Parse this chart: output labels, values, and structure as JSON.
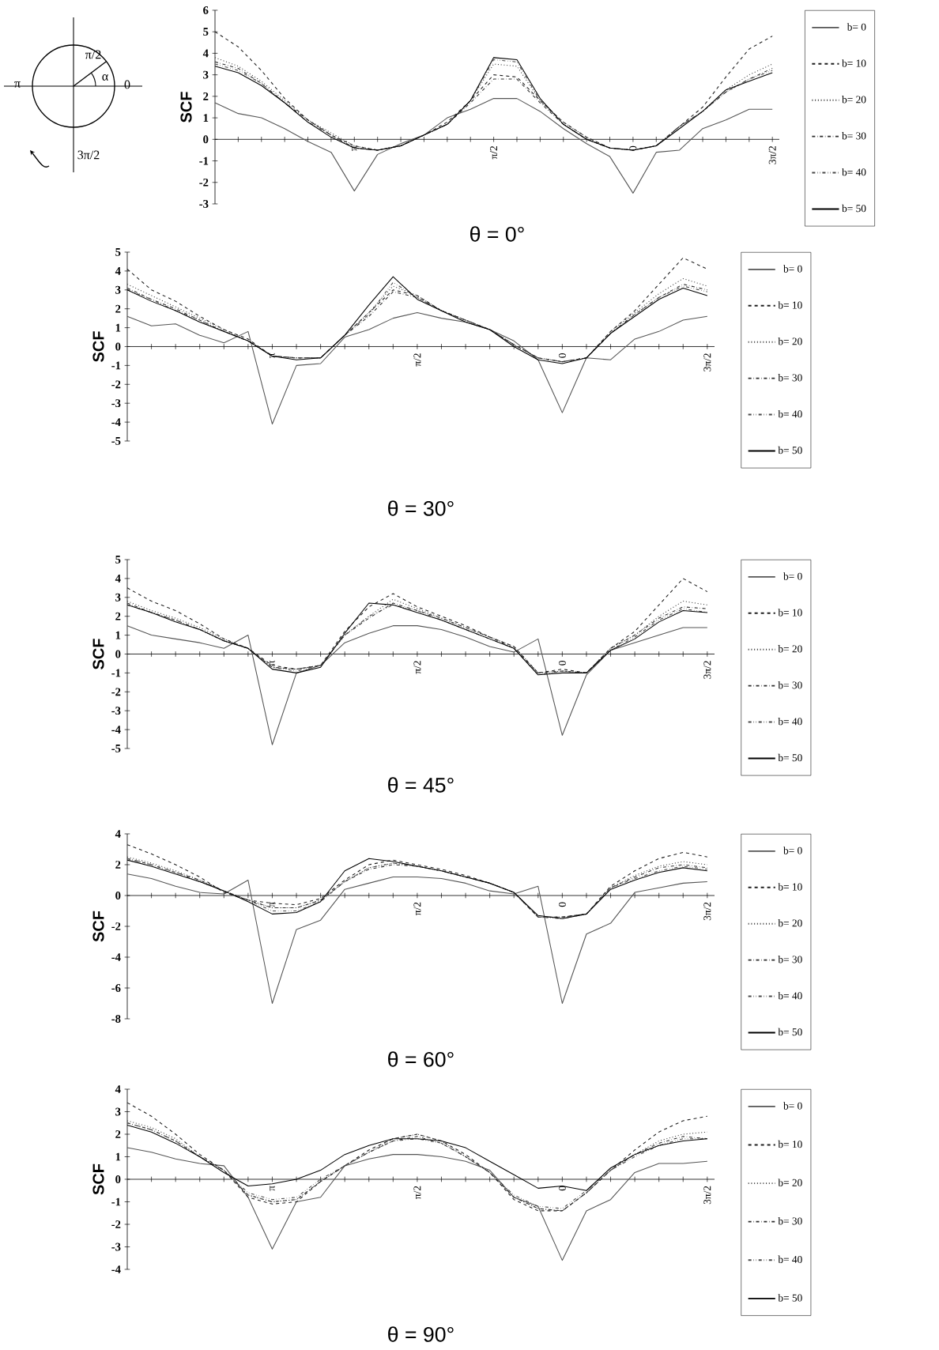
{
  "chart_data": [
    {
      "type": "line",
      "title": "θ = 0°",
      "ylabel": "SCF",
      "annotations": [
        "π/2",
        "π",
        "0",
        "3π/2",
        "α"
      ],
      "legend": "right",
      "ylim": [
        -3,
        6
      ],
      "yticks": [
        -3,
        -2,
        -1,
        0,
        1,
        2,
        3,
        4,
        5,
        6
      ],
      "categories": [
        null,
        null,
        null,
        null,
        null,
        null,
        "π",
        null,
        null,
        null,
        null,
        null,
        "π/2",
        null,
        null,
        null,
        null,
        null,
        "0",
        null,
        null,
        null,
        null,
        null,
        "3π/2"
      ],
      "series": [
        {
          "name": "b= 0",
          "color": "#555555",
          "line_style": "solid",
          "values": [
            1.7,
            1.2,
            1.0,
            0.5,
            -0.1,
            -0.6,
            -2.4,
            -0.7,
            -0.2,
            0.2,
            1.0,
            1.4,
            1.9,
            1.9,
            1.3,
            0.5,
            -0.2,
            -0.8,
            -2.5,
            -0.6,
            -0.5,
            0.5,
            0.9,
            1.4,
            1.4
          ]
        },
        {
          "name": "b= 10",
          "color": "#1f1f1f",
          "line_style": "dashed",
          "values": [
            5.0,
            4.3,
            3.2,
            1.9,
            0.9,
            0.2,
            -0.3,
            -0.5,
            -0.3,
            0.2,
            0.8,
            1.8,
            3.0,
            2.9,
            1.8,
            0.8,
            0.1,
            -0.4,
            -0.5,
            -0.3,
            0.6,
            1.5,
            2.9,
            4.2,
            4.8
          ]
        },
        {
          "name": "b= 20",
          "color": "#3d3d3d",
          "line_style": "dotted",
          "values": [
            3.8,
            3.4,
            2.7,
            1.8,
            0.9,
            0.3,
            -0.3,
            -0.5,
            -0.3,
            0.2,
            0.7,
            1.8,
            3.5,
            3.4,
            1.8,
            0.8,
            0.1,
            -0.4,
            -0.5,
            -0.3,
            0.6,
            1.3,
            2.3,
            3.0,
            3.5
          ]
        },
        {
          "name": "b= 30",
          "color": "#2e2e2e",
          "line_style": "dashdot",
          "values": [
            3.6,
            3.3,
            2.6,
            1.7,
            0.9,
            0.2,
            -0.4,
            -0.5,
            -0.3,
            0.2,
            0.7,
            1.7,
            2.8,
            2.8,
            1.7,
            0.7,
            0.0,
            -0.4,
            -0.5,
            -0.3,
            0.6,
            1.3,
            2.2,
            2.8,
            3.3
          ]
        },
        {
          "name": "b= 40",
          "color": "#4a4a4a",
          "line_style": "dashdotdot",
          "values": [
            3.5,
            3.2,
            2.6,
            1.7,
            0.8,
            0.2,
            -0.4,
            -0.5,
            -0.3,
            0.2,
            0.7,
            1.8,
            3.7,
            3.6,
            1.8,
            0.7,
            0.0,
            -0.4,
            -0.5,
            -0.3,
            0.6,
            1.3,
            2.2,
            2.8,
            3.2
          ]
        },
        {
          "name": "b= 50",
          "color": "#000000",
          "line_style": "solid",
          "values": [
            3.4,
            3.1,
            2.5,
            1.7,
            0.8,
            0.1,
            -0.4,
            -0.5,
            -0.3,
            0.2,
            0.7,
            1.8,
            3.8,
            3.7,
            1.9,
            0.7,
            0.0,
            -0.4,
            -0.5,
            -0.3,
            0.5,
            1.3,
            2.3,
            2.7,
            3.1
          ]
        }
      ]
    },
    {
      "type": "line",
      "title": "θ = 30°",
      "ylabel": "SCF",
      "legend": "right",
      "ylim": [
        -5,
        5
      ],
      "yticks": [
        -5,
        -4,
        -3,
        -2,
        -1,
        0,
        1,
        2,
        3,
        4,
        5
      ],
      "categories": [
        null,
        null,
        null,
        null,
        null,
        null,
        "π",
        null,
        null,
        null,
        null,
        null,
        "π/2",
        null,
        null,
        null,
        null,
        null,
        "0",
        null,
        null,
        null,
        null,
        null,
        "3π/2"
      ],
      "series": [
        {
          "name": "b= 0",
          "color": "#555555",
          "line_style": "solid",
          "values": [
            1.6,
            1.1,
            1.2,
            0.6,
            0.2,
            0.8,
            -4.1,
            -1.0,
            -0.9,
            0.5,
            0.9,
            1.5,
            1.8,
            1.5,
            1.3,
            0.9,
            0.3,
            -0.7,
            -3.5,
            -0.6,
            -0.7,
            0.4,
            0.8,
            1.4,
            1.6
          ]
        },
        {
          "name": "b= 10",
          "color": "#1f1f1f",
          "line_style": "dashed",
          "values": [
            4.1,
            3.0,
            2.4,
            1.6,
            0.9,
            0.4,
            -0.5,
            -0.6,
            -0.6,
            0.6,
            1.8,
            3.0,
            2.7,
            1.9,
            1.4,
            0.9,
            0.1,
            -0.6,
            -0.8,
            -0.6,
            0.8,
            1.9,
            3.3,
            4.7,
            4.1
          ]
        },
        {
          "name": "b= 20",
          "color": "#3d3d3d",
          "line_style": "dotted",
          "values": [
            3.3,
            2.7,
            2.1,
            1.5,
            0.9,
            0.3,
            -0.5,
            -0.6,
            -0.6,
            0.6,
            1.8,
            3.2,
            2.7,
            1.9,
            1.4,
            0.9,
            0.1,
            -0.6,
            -0.8,
            -0.6,
            0.8,
            1.8,
            2.8,
            3.6,
            3.2
          ]
        },
        {
          "name": "b= 30",
          "color": "#2e2e2e",
          "line_style": "dashdot",
          "values": [
            3.1,
            2.5,
            2.0,
            1.4,
            0.8,
            0.3,
            -0.5,
            -0.6,
            -0.6,
            0.6,
            1.6,
            2.9,
            2.6,
            1.9,
            1.4,
            0.9,
            0.1,
            -0.6,
            -0.8,
            -0.6,
            0.7,
            1.7,
            2.6,
            3.3,
            3.0
          ]
        },
        {
          "name": "b= 40",
          "color": "#4a4a4a",
          "line_style": "dashdotdot",
          "values": [
            3.0,
            2.5,
            1.9,
            1.4,
            0.8,
            0.3,
            -0.5,
            -0.6,
            -0.6,
            0.6,
            1.7,
            3.4,
            2.6,
            1.9,
            1.4,
            0.9,
            0.1,
            -0.6,
            -0.8,
            -0.6,
            0.7,
            1.7,
            2.6,
            3.2,
            2.9
          ]
        },
        {
          "name": "b= 50",
          "color": "#000000",
          "line_style": "solid",
          "values": [
            3.0,
            2.4,
            1.9,
            1.3,
            0.8,
            0.3,
            -0.5,
            -0.7,
            -0.6,
            0.6,
            2.2,
            3.7,
            2.5,
            1.9,
            1.3,
            0.9,
            0.0,
            -0.7,
            -0.9,
            -0.6,
            0.7,
            1.6,
            2.5,
            3.1,
            2.7
          ]
        }
      ]
    },
    {
      "type": "line",
      "title": "θ = 45°",
      "ylabel": "SCF",
      "legend": "right",
      "ylim": [
        -5,
        5
      ],
      "yticks": [
        -5,
        -4,
        -3,
        -2,
        -1,
        0,
        1,
        2,
        3,
        4,
        5
      ],
      "categories": [
        null,
        null,
        null,
        null,
        null,
        null,
        "π",
        null,
        null,
        null,
        null,
        null,
        "π/2",
        null,
        null,
        null,
        null,
        null,
        "0",
        null,
        null,
        null,
        null,
        null,
        "3π/2"
      ],
      "series": [
        {
          "name": "b= 0",
          "color": "#555555",
          "line_style": "solid",
          "values": [
            1.5,
            1.0,
            0.8,
            0.6,
            0.3,
            1.0,
            -4.8,
            -1.0,
            -0.6,
            0.6,
            1.1,
            1.5,
            1.5,
            1.3,
            0.9,
            0.4,
            0.1,
            0.8,
            -4.3,
            -1.1,
            0.2,
            0.6,
            1.0,
            1.4,
            1.4
          ]
        },
        {
          "name": "b= 10",
          "color": "#1f1f1f",
          "line_style": "dashed",
          "values": [
            3.5,
            2.8,
            2.3,
            1.6,
            0.8,
            0.3,
            -0.6,
            -0.8,
            -0.6,
            1.2,
            2.5,
            3.2,
            2.5,
            2.0,
            1.5,
            0.9,
            0.4,
            -1.0,
            -0.8,
            -1.0,
            0.3,
            1.2,
            2.6,
            4.0,
            3.3
          ]
        },
        {
          "name": "b= 20",
          "color": "#3d3d3d",
          "line_style": "dotted",
          "values": [
            2.8,
            2.3,
            1.9,
            1.4,
            0.8,
            0.3,
            -0.7,
            -0.8,
            -0.6,
            1.0,
            2.0,
            2.9,
            2.4,
            1.9,
            1.4,
            0.9,
            0.4,
            -1.0,
            -0.9,
            -1.0,
            0.3,
            1.0,
            2.0,
            2.8,
            2.6
          ]
        },
        {
          "name": "b= 30",
          "color": "#2e2e2e",
          "line_style": "dashdot",
          "values": [
            2.7,
            2.2,
            1.8,
            1.3,
            0.7,
            0.3,
            -0.7,
            -0.8,
            -0.6,
            1.0,
            1.9,
            2.7,
            2.3,
            1.9,
            1.4,
            0.9,
            0.3,
            -1.0,
            -0.9,
            -1.0,
            0.3,
            1.0,
            1.9,
            2.5,
            2.4
          ]
        },
        {
          "name": "b= 40",
          "color": "#4a4a4a",
          "line_style": "dashdotdot",
          "values": [
            2.6,
            2.2,
            1.8,
            1.3,
            0.7,
            0.3,
            -0.7,
            -0.9,
            -0.6,
            1.0,
            2.0,
            2.6,
            2.3,
            1.8,
            1.3,
            0.8,
            0.3,
            -1.1,
            -0.9,
            -1.0,
            0.2,
            0.9,
            1.8,
            2.4,
            2.2
          ]
        },
        {
          "name": "b= 50",
          "color": "#000000",
          "line_style": "solid",
          "values": [
            2.6,
            2.2,
            1.7,
            1.3,
            0.7,
            0.3,
            -0.8,
            -1.0,
            -0.7,
            1.1,
            2.7,
            2.6,
            2.2,
            1.8,
            1.3,
            0.8,
            0.3,
            -1.1,
            -1.0,
            -1.0,
            0.2,
            0.8,
            1.7,
            2.3,
            2.2
          ]
        }
      ]
    },
    {
      "type": "line",
      "title": "θ = 60°",
      "ylabel": "SCF",
      "legend": "right",
      "ylim": [
        -8,
        4
      ],
      "yticks": [
        -8,
        -6,
        -4,
        -2,
        0,
        2,
        4
      ],
      "categories": [
        null,
        null,
        null,
        null,
        null,
        null,
        "π",
        null,
        null,
        null,
        null,
        null,
        "π/2",
        null,
        null,
        null,
        null,
        null,
        "0",
        null,
        null,
        null,
        null,
        null,
        "3π/2"
      ],
      "series": [
        {
          "name": "b= 0",
          "color": "#555555",
          "line_style": "solid",
          "values": [
            1.4,
            1.1,
            0.6,
            0.2,
            0.1,
            1.0,
            -7.0,
            -2.2,
            -1.6,
            0.4,
            0.8,
            1.2,
            1.2,
            1.1,
            0.8,
            0.3,
            0.1,
            0.6,
            -7.0,
            -2.5,
            -1.8,
            0.2,
            0.5,
            0.8,
            0.9
          ]
        },
        {
          "name": "b= 10",
          "color": "#1f1f1f",
          "line_style": "dashed",
          "values": [
            3.3,
            2.7,
            2.0,
            1.2,
            0.2,
            -0.3,
            -0.5,
            -0.6,
            -0.2,
            1.0,
            2.0,
            2.3,
            2.0,
            1.7,
            1.3,
            0.8,
            0.2,
            -1.4,
            -1.4,
            -1.2,
            0.6,
            1.6,
            2.4,
            2.8,
            2.5
          ]
        },
        {
          "name": "b= 20",
          "color": "#3d3d3d",
          "line_style": "dotted",
          "values": [
            2.5,
            2.1,
            1.6,
            1.0,
            0.3,
            -0.3,
            -0.8,
            -0.8,
            -0.3,
            0.9,
            1.8,
            2.1,
            1.9,
            1.6,
            1.2,
            0.8,
            0.2,
            -1.4,
            -1.4,
            -1.2,
            0.5,
            1.3,
            1.9,
            2.2,
            2.0
          ]
        },
        {
          "name": "b= 30",
          "color": "#2e2e2e",
          "line_style": "dashdot",
          "values": [
            2.4,
            2.0,
            1.5,
            1.0,
            0.3,
            -0.3,
            -0.8,
            -0.8,
            -0.3,
            0.9,
            1.7,
            2.0,
            1.9,
            1.6,
            1.2,
            0.8,
            0.2,
            -1.4,
            -1.4,
            -1.2,
            0.5,
            1.2,
            1.8,
            2.0,
            1.8
          ]
        },
        {
          "name": "b= 40",
          "color": "#4a4a4a",
          "line_style": "dashdotdot",
          "values": [
            2.4,
            2.0,
            1.5,
            0.9,
            0.3,
            -0.3,
            -1.0,
            -1.0,
            -0.4,
            0.9,
            1.8,
            2.1,
            1.9,
            1.6,
            1.2,
            0.8,
            0.2,
            -1.4,
            -1.5,
            -1.2,
            0.5,
            1.1,
            1.6,
            1.9,
            1.7
          ]
        },
        {
          "name": "b= 50",
          "color": "#000000",
          "line_style": "solid",
          "values": [
            2.3,
            1.9,
            1.4,
            0.9,
            0.3,
            -0.4,
            -1.2,
            -1.1,
            -0.4,
            1.6,
            2.4,
            2.2,
            1.9,
            1.6,
            1.2,
            0.8,
            0.2,
            -1.3,
            -1.5,
            -1.2,
            0.4,
            1.0,
            1.5,
            1.8,
            1.6
          ]
        }
      ]
    },
    {
      "type": "line",
      "title": "θ = 90°",
      "ylabel": "SCF",
      "legend": "right",
      "ylim": [
        -4,
        4
      ],
      "yticks": [
        -4,
        -3,
        -2,
        -1,
        0,
        1,
        2,
        3,
        4
      ],
      "categories": [
        null,
        null,
        null,
        null,
        null,
        null,
        "π",
        null,
        null,
        null,
        null,
        null,
        "π/2",
        null,
        null,
        null,
        null,
        null,
        "0",
        null,
        null,
        null,
        null,
        null,
        "3π/2"
      ],
      "series": [
        {
          "name": "b= 0",
          "color": "#555555",
          "line_style": "solid",
          "values": [
            1.4,
            1.2,
            0.9,
            0.7,
            0.6,
            -0.8,
            -3.1,
            -1.0,
            -0.8,
            0.6,
            0.9,
            1.1,
            1.1,
            1.0,
            0.8,
            0.4,
            -0.8,
            -1.2,
            -3.6,
            -1.4,
            -0.9,
            0.3,
            0.7,
            0.7,
            0.8
          ]
        },
        {
          "name": "b= 10",
          "color": "#1f1f1f",
          "line_style": "dashed",
          "values": [
            3.4,
            2.8,
            2.0,
            1.1,
            0.4,
            -0.8,
            -1.1,
            -1.0,
            -0.1,
            0.6,
            1.3,
            1.8,
            2.0,
            1.7,
            1.1,
            0.3,
            -0.9,
            -1.4,
            -1.4,
            -0.6,
            0.4,
            1.3,
            2.1,
            2.6,
            2.8
          ]
        },
        {
          "name": "b= 20",
          "color": "#3d3d3d",
          "line_style": "dotted",
          "values": [
            2.6,
            2.3,
            1.8,
            1.0,
            0.4,
            -0.7,
            -1.0,
            -0.9,
            -0.1,
            0.6,
            1.2,
            1.8,
            2.0,
            1.7,
            1.0,
            0.3,
            -0.8,
            -1.3,
            -1.4,
            -0.6,
            0.4,
            1.1,
            1.7,
            2.0,
            2.1
          ]
        },
        {
          "name": "b= 30",
          "color": "#2e2e2e",
          "line_style": "dashdot",
          "values": [
            2.5,
            2.2,
            1.7,
            1.0,
            0.4,
            -0.7,
            -1.0,
            -0.9,
            -0.1,
            0.6,
            1.2,
            1.7,
            1.9,
            1.6,
            1.0,
            0.3,
            -0.8,
            -1.3,
            -1.4,
            -0.6,
            0.4,
            1.1,
            1.6,
            1.9,
            1.8
          ]
        },
        {
          "name": "b= 40",
          "color": "#4a4a4a",
          "line_style": "dashdotdot",
          "values": [
            2.5,
            2.2,
            1.7,
            1.0,
            0.4,
            -0.6,
            -0.9,
            -0.8,
            0.0,
            0.6,
            1.2,
            1.7,
            1.8,
            1.6,
            1.0,
            0.3,
            -0.7,
            -1.2,
            -1.3,
            -0.5,
            0.4,
            1.0,
            1.5,
            1.8,
            1.8
          ]
        },
        {
          "name": "b= 50",
          "color": "#000000",
          "line_style": "solid",
          "values": [
            2.4,
            2.1,
            1.6,
            1.0,
            0.3,
            -0.3,
            -0.2,
            0.0,
            0.4,
            1.1,
            1.5,
            1.8,
            1.8,
            1.7,
            1.4,
            0.8,
            0.2,
            -0.4,
            -0.3,
            -0.5,
            0.5,
            1.1,
            1.5,
            1.7,
            1.8
          ]
        }
      ]
    }
  ]
}
